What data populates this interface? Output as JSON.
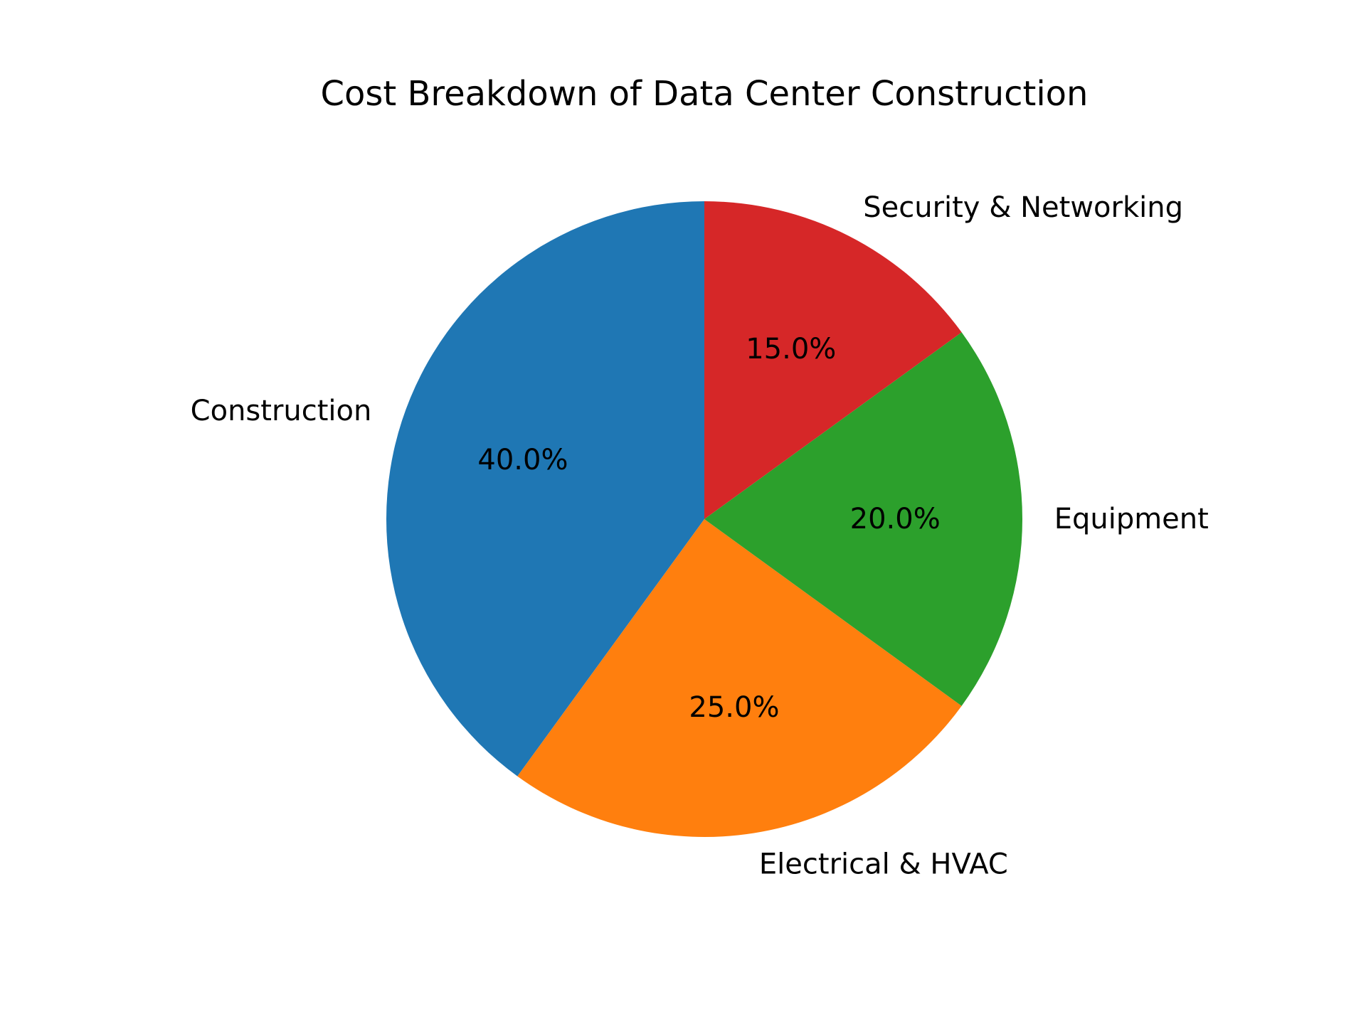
{
  "chart_data": {
    "type": "pie",
    "title": "Cost Breakdown of Data Center Construction",
    "start_angle_deg": 90,
    "direction": "counterclockwise",
    "slices": [
      {
        "label": "Construction",
        "value": 40.0,
        "pct_label": "40.0%",
        "color": "#1f77b4"
      },
      {
        "label": "Electrical & HVAC",
        "value": 25.0,
        "pct_label": "25.0%",
        "color": "#ff7f0e"
      },
      {
        "label": "Equipment",
        "value": 20.0,
        "pct_label": "20.0%",
        "color": "#2ca02c"
      },
      {
        "label": "Security & Networking",
        "value": 15.0,
        "pct_label": "15.0%",
        "color": "#d62728"
      }
    ]
  }
}
